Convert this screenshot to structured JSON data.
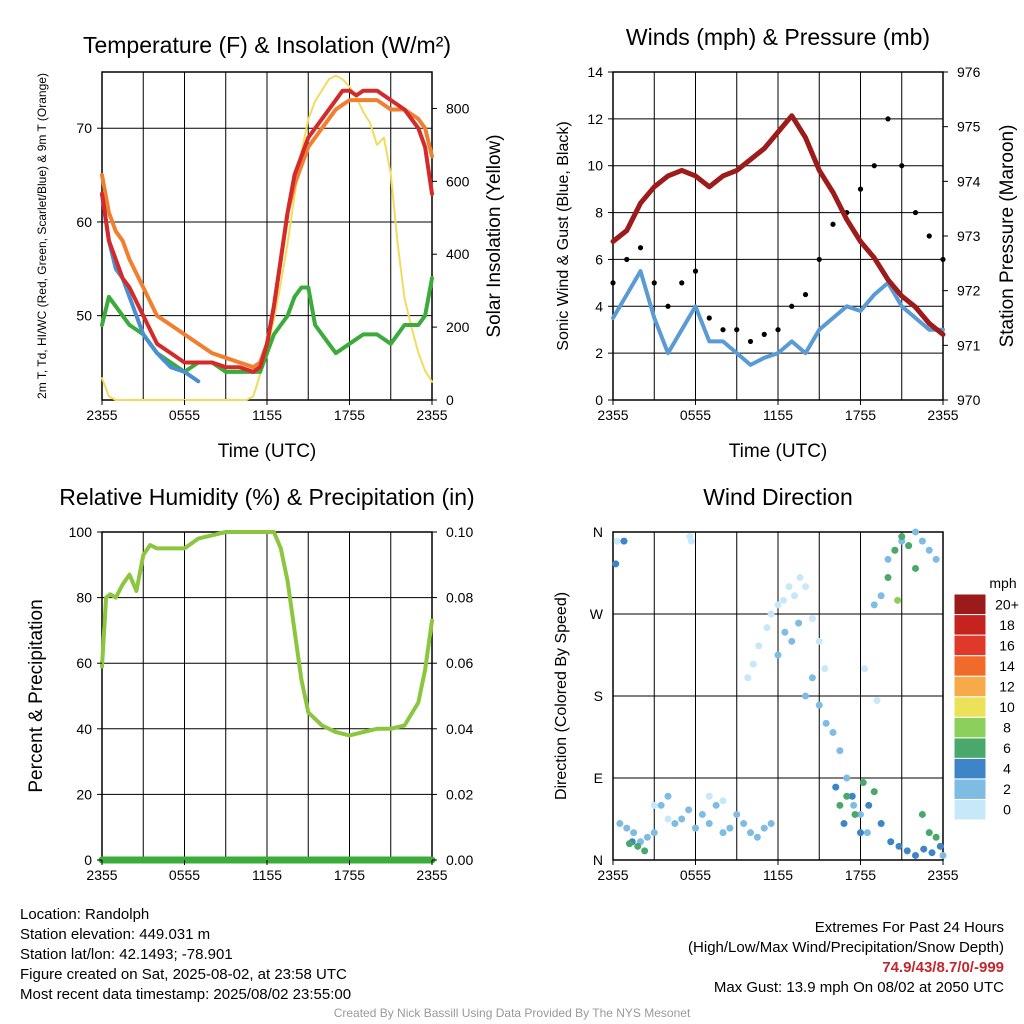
{
  "panels": {
    "temperature": {
      "title": "Temperature (F) & Insolation (W/m²)",
      "ylabel_left": "2m T, Td, HI/WC (Red, Green, Scarlet/Blue) & 9m T (Orange)",
      "ylabel_right": "Solar Insolation (Yellow)",
      "xlabel": "Time (UTC)"
    },
    "winds": {
      "title": "Winds (mph) & Pressure (mb)",
      "ylabel_left": "Sonic Wind & Gust (Blue, Black)",
      "ylabel_right": "Station Pressure (Maroon)",
      "xlabel": "Time (UTC)"
    },
    "humidity": {
      "title": "Relative Humidity (%) & Precipitation (in)",
      "ylabel_left": "Percent & Precipitation"
    },
    "direction": {
      "title": "Wind Direction",
      "ylabel_left": "Direction (Colored By Speed)",
      "colorbar_title": "mph"
    }
  },
  "station": {
    "location": "Location: Randolph",
    "elevation": "Station elevation: 449.031 m",
    "latlon": "Station lat/lon: 42.1493; -78.901",
    "created": "Figure created on Sat, 2025-08-02, at 23:58 UTC",
    "recent": "Most recent data timestamp: 2025/08/02 23:55:00"
  },
  "extremes": {
    "title": "Extremes For Past 24 Hours",
    "subtitle": "(High/Low/Max Wind/Precipitation/Snow Depth)",
    "values": "74.9/43/8.7/0/-999",
    "max_gust": "Max Gust: 13.9 mph On 08/02 at 2050 UTC"
  },
  "credit": "Created By Nick Bassill Using Data Provided By The NYS Mesonet",
  "colors": {
    "temp": "#d42a2a",
    "t9m": "#f08030",
    "dew": "#3bab3b",
    "wc": "#4a8fd0",
    "solar": "#f2dc5d",
    "wind": "#5b9bd5",
    "gust": "#000000",
    "pressure": "#9e1b1b",
    "rh": "#8cc63f",
    "precip": "#3bab3b"
  },
  "chart_data": [
    {
      "type": "line",
      "id": "temperature",
      "x_ticks": [
        "2355",
        "0555",
        "1155",
        "1755",
        "2355"
      ],
      "x_hours": [
        0,
        24
      ],
      "ylim_left": [
        41,
        76
      ],
      "yticks_left": [
        50,
        60,
        70
      ],
      "ylim_right": [
        0,
        900
      ],
      "yticks_right": [
        0,
        200,
        400,
        600,
        800
      ],
      "grid": true,
      "series": [
        {
          "key": "t2m",
          "axis": "left",
          "x": [
            0,
            0.5,
            1,
            1.5,
            2,
            3,
            4,
            5,
            6,
            7,
            8,
            9,
            10,
            11,
            11.5,
            12,
            12.5,
            13,
            13.5,
            14,
            14.5,
            15,
            16,
            17,
            17.5,
            18,
            18.5,
            19,
            20,
            21,
            22,
            23,
            23.5,
            24
          ],
          "y": [
            63,
            58,
            56,
            54,
            53,
            50,
            47,
            46,
            45,
            45,
            45,
            44.5,
            44.5,
            44,
            44.5,
            47,
            51,
            56,
            61,
            65,
            67,
            69,
            71,
            73,
            74,
            74,
            73.5,
            74,
            74,
            73,
            72,
            70,
            68,
            63
          ]
        },
        {
          "key": "t9m",
          "axis": "left",
          "x": [
            0,
            0.5,
            1,
            1.5,
            2,
            3,
            4,
            5,
            6,
            7,
            8,
            9,
            10,
            11,
            11.5,
            12,
            12.5,
            13,
            13.5,
            14,
            14.5,
            15,
            16,
            17,
            17.5,
            18,
            19,
            20,
            21,
            22,
            23,
            23.5,
            24
          ],
          "y": [
            65,
            61,
            59,
            58,
            56,
            53,
            50,
            49,
            48,
            47,
            46,
            45.5,
            45,
            44.5,
            45,
            47,
            51,
            56,
            61,
            64,
            66,
            68,
            70,
            72,
            72.5,
            73,
            73,
            73,
            72,
            72,
            71,
            70,
            67
          ]
        },
        {
          "key": "dew",
          "axis": "left",
          "x": [
            0,
            0.5,
            1,
            1.5,
            2,
            3,
            4,
            5,
            6,
            7,
            8,
            9,
            10,
            11,
            11.5,
            12,
            12.5,
            13,
            13.5,
            14,
            14.5,
            15,
            15.5,
            16,
            16.5,
            17,
            18,
            19,
            20,
            21,
            22,
            23,
            23.5,
            24
          ],
          "y": [
            49,
            52,
            51,
            50,
            49,
            48,
            46,
            45,
            44,
            45,
            45,
            44,
            44,
            44,
            44,
            46,
            48,
            49,
            50,
            52,
            53,
            53,
            49,
            48,
            47,
            46,
            47,
            48,
            48,
            47,
            49,
            49,
            50,
            54
          ]
        },
        {
          "key": "hiwc",
          "axis": "left",
          "x": [
            0,
            0.5,
            1,
            1.5,
            2,
            2.5,
            3,
            4,
            5,
            6,
            7
          ],
          "y": [
            63,
            58,
            55,
            54,
            52,
            50,
            48,
            46,
            44.5,
            44,
            43
          ]
        },
        {
          "key": "solar",
          "axis": "right",
          "x": [
            0,
            0.5,
            1,
            2,
            3,
            4,
            5,
            6,
            7,
            8,
            9,
            10,
            10.5,
            11,
            11.5,
            12,
            12.5,
            13,
            13.5,
            14,
            14.5,
            15,
            15.5,
            16,
            16.5,
            17,
            17.5,
            18,
            18.5,
            19,
            19.5,
            20,
            20.5,
            21,
            21.5,
            22,
            22.5,
            23,
            23.5,
            24
          ],
          "y": [
            60,
            10,
            0,
            0,
            0,
            0,
            0,
            0,
            0,
            0,
            0,
            0,
            0,
            10,
            70,
            140,
            220,
            320,
            430,
            560,
            680,
            770,
            820,
            850,
            880,
            890,
            880,
            860,
            830,
            790,
            760,
            700,
            720,
            620,
            430,
            280,
            200,
            130,
            80,
            50
          ]
        }
      ]
    },
    {
      "type": "line",
      "id": "winds",
      "x_ticks": [
        "2355",
        "0555",
        "1155",
        "1755",
        "2355"
      ],
      "x_hours": [
        0,
        24
      ],
      "ylim_left": [
        0,
        14
      ],
      "yticks_left": [
        0,
        2,
        4,
        6,
        8,
        10,
        12,
        14
      ],
      "ylim_right": [
        970,
        976
      ],
      "yticks_right": [
        970,
        971,
        972,
        973,
        974,
        975,
        976
      ],
      "grid": true,
      "series": [
        {
          "key": "pressure",
          "axis": "right",
          "x": [
            0,
            1,
            2,
            3,
            4,
            5,
            6,
            7,
            8,
            9,
            10,
            11,
            12,
            13,
            14,
            15,
            16,
            17,
            18,
            19,
            20,
            21,
            22,
            23,
            24
          ],
          "y": [
            972.9,
            973.1,
            973.6,
            973.9,
            974.1,
            974.2,
            974.1,
            973.9,
            974.1,
            974.2,
            974.4,
            974.6,
            974.9,
            975.2,
            974.8,
            974.2,
            973.8,
            973.3,
            972.9,
            972.6,
            972.2,
            971.9,
            971.7,
            971.4,
            971.2
          ]
        },
        {
          "key": "wind",
          "axis": "left",
          "x": [
            0,
            1,
            2,
            3,
            4,
            5,
            6,
            7,
            8,
            9,
            10,
            11,
            12,
            13,
            14,
            15,
            16,
            17,
            18,
            19,
            20,
            21,
            22,
            23,
            24
          ],
          "y": [
            3.5,
            4.5,
            5.5,
            3.5,
            2,
            3,
            4,
            2.5,
            2.5,
            2,
            1.5,
            1.8,
            2,
            2.5,
            2,
            3,
            3.5,
            4,
            3.8,
            4.5,
            5,
            4,
            3.5,
            3,
            3
          ]
        },
        {
          "key": "gust",
          "axis": "left",
          "x": [
            0,
            1,
            2,
            3,
            4,
            5,
            6,
            7,
            8,
            9,
            10,
            11,
            12,
            13,
            14,
            15,
            16,
            17,
            18,
            19,
            20,
            21,
            22,
            23,
            24
          ],
          "y": [
            5,
            6,
            6.5,
            5,
            4,
            5,
            5.5,
            3.5,
            3,
            3,
            2.5,
            2.8,
            3,
            4,
            4.5,
            6,
            7.5,
            8,
            9,
            10,
            12,
            10,
            8,
            7,
            6
          ]
        }
      ]
    },
    {
      "type": "line",
      "id": "humidity",
      "x_ticks": [
        "2355",
        "0555",
        "1155",
        "1755",
        "2355"
      ],
      "x_hours": [
        0,
        24
      ],
      "ylim_left": [
        0,
        100
      ],
      "yticks_left": [
        0,
        20,
        40,
        60,
        80,
        100
      ],
      "ylim_right": [
        0,
        0.1
      ],
      "yticks_right": [
        "0.00",
        "0.02",
        "0.04",
        "0.06",
        "0.08",
        "0.10"
      ],
      "grid": true,
      "series": [
        {
          "key": "rh",
          "axis": "left",
          "x": [
            0,
            0.3,
            0.6,
            1,
            1.5,
            2,
            2.5,
            3,
            3.5,
            4,
            5,
            6,
            7,
            8,
            9,
            10,
            11,
            12,
            12.5,
            13,
            13.5,
            14,
            14.5,
            15,
            16,
            17,
            18,
            19,
            20,
            21,
            22,
            23,
            23.5,
            24
          ],
          "y": [
            59,
            80,
            81,
            80,
            84,
            87,
            82,
            93,
            96,
            95,
            95,
            95,
            98,
            99,
            100,
            100,
            100,
            100,
            100,
            95,
            85,
            70,
            55,
            45,
            41,
            39,
            38,
            39,
            40,
            40,
            41,
            48,
            58,
            73
          ]
        },
        {
          "key": "precip",
          "axis": "right",
          "x": [
            0,
            24
          ],
          "y": [
            0,
            0
          ]
        }
      ]
    },
    {
      "type": "scatter",
      "id": "direction",
      "x_ticks": [
        "2355",
        "0555",
        "1155",
        "1755",
        "2355"
      ],
      "x_hours": [
        0,
        24
      ],
      "ytick_labels": [
        "N",
        "E",
        "S",
        "W",
        "N"
      ],
      "ylim_deg": [
        0,
        360
      ],
      "grid": true,
      "colorbar": {
        "labels": [
          "0",
          "2",
          "4",
          "6",
          "8",
          "10",
          "12",
          "14",
          "16",
          "18",
          "20+"
        ],
        "colors": [
          "#c6e8f8",
          "#7fbce4",
          "#3d85c6",
          "#4aa86a",
          "#8ccf5b",
          "#ece25a",
          "#f7aa4a",
          "#f06a2a",
          "#e0392a",
          "#c4231f",
          "#9b1a1a"
        ]
      },
      "series": [
        {
          "name": "0-2 mph",
          "speed": 1.5,
          "x": [
            0.3,
            5.6,
            5.7,
            9.8,
            10.2,
            10.6,
            11.2,
            11.5,
            12,
            12.4,
            12.8,
            13.2,
            13.6,
            14,
            14.5,
            15,
            15.4,
            18.3,
            19.2,
            3,
            4,
            7,
            8
          ],
          "y": [
            350,
            355,
            350,
            200,
            215,
            235,
            255,
            270,
            280,
            285,
            300,
            290,
            310,
            300,
            265,
            240,
            210,
            210,
            175,
            60,
            45,
            70,
            65
          ]
        },
        {
          "name": "2-4 mph",
          "speed": 3,
          "x": [
            0.5,
            1,
            1.5,
            2,
            2.5,
            3,
            3.5,
            4,
            4.5,
            5,
            5.5,
            6,
            6.5,
            7,
            7.5,
            8,
            8.5,
            9,
            9.5,
            10,
            10.5,
            11,
            11.5,
            12,
            12.5,
            13,
            13.5,
            14,
            14.5,
            15,
            15.5,
            16,
            16.5,
            17,
            17.5,
            18,
            18.5,
            19,
            19.5,
            20,
            20.5,
            21,
            21.5,
            22,
            22.5,
            23,
            23.5,
            24
          ],
          "y": [
            40,
            35,
            30,
            20,
            25,
            30,
            60,
            70,
            40,
            45,
            55,
            35,
            50,
            40,
            60,
            30,
            35,
            50,
            40,
            30,
            25,
            35,
            40,
            225,
            250,
            240,
            260,
            180,
            200,
            170,
            150,
            140,
            120,
            90,
            60,
            50,
            30,
            280,
            290,
            330,
            340,
            350,
            345,
            360,
            350,
            340,
            330,
            5
          ]
        },
        {
          "name": "4-6 mph",
          "speed": 5,
          "x": [
            0.2,
            16.2,
            16.8,
            17.4,
            18,
            18.6,
            19.5,
            20.2,
            20.8,
            21.4,
            22,
            22.6,
            23.2,
            23.8,
            0.8,
            1.4
          ],
          "y": [
            325,
            80,
            40,
            70,
            30,
            60,
            40,
            20,
            15,
            10,
            5,
            12,
            8,
            15,
            350,
            20
          ]
        },
        {
          "name": "6-8 mph",
          "speed": 7,
          "x": [
            1.2,
            1.8,
            2.3,
            16.5,
            17,
            17.6,
            18.2,
            19,
            20,
            20.5,
            21,
            21.5,
            22,
            22.5,
            23,
            23.5
          ],
          "y": [
            18,
            15,
            10,
            60,
            70,
            50,
            85,
            75,
            310,
            340,
            355,
            345,
            320,
            50,
            30,
            25
          ]
        },
        {
          "name": "8-10 mph",
          "speed": 9,
          "x": [
            20.7
          ],
          "y": [
            285
          ]
        }
      ]
    }
  ]
}
